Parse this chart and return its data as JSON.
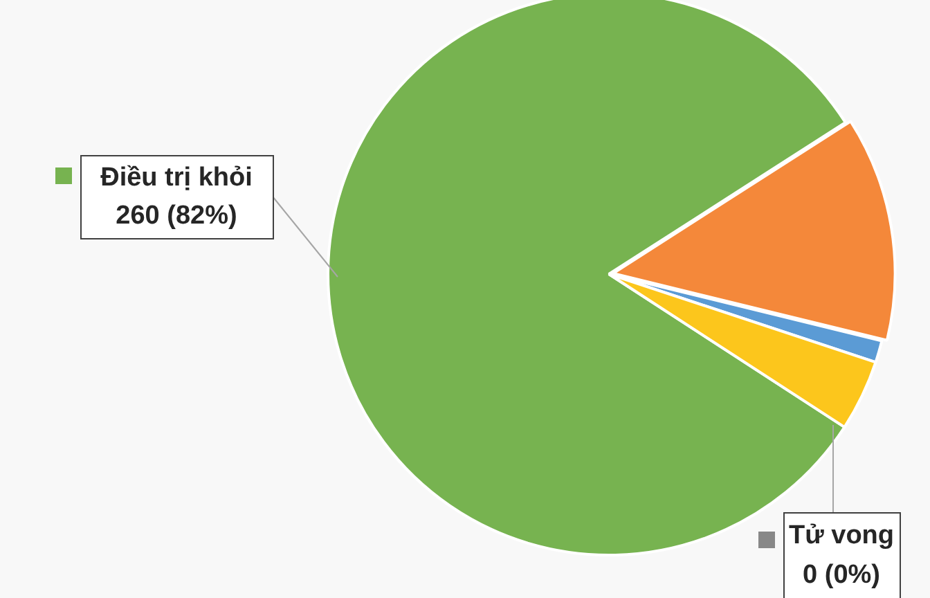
{
  "chart_data": {
    "type": "pie",
    "categories": [
      "Điều trị khỏi",
      null,
      null,
      null,
      "Tử vong"
    ],
    "values": [
      260,
      41,
      4,
      13,
      0
    ],
    "colors": [
      "#77b350",
      "#f4883a",
      "#5b9bd5",
      "#fcc61c",
      "#888888"
    ],
    "value_labels": [
      "260 (82%)",
      null,
      null,
      null,
      "0 (0%)"
    ],
    "legend": "left"
  }
}
